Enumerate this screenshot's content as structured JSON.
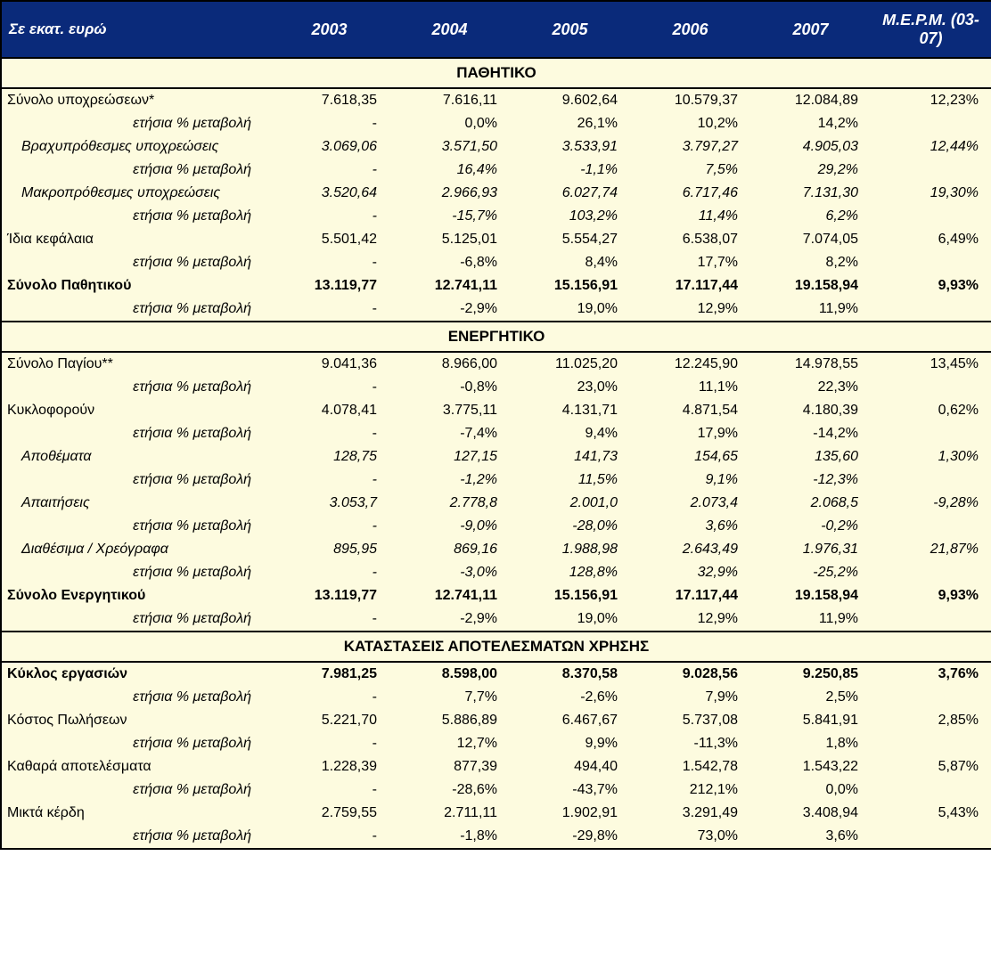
{
  "colors": {
    "header_bg": "#0a2a7a",
    "header_text": "#ffffff",
    "body_bg": "#fdfbdf",
    "border": "#000000"
  },
  "header": {
    "row_label": "Σε εκατ. ευρώ",
    "years": [
      "2003",
      "2004",
      "2005",
      "2006",
      "2007"
    ],
    "avg": "Μ.Ε.Ρ.Μ. (03-07)"
  },
  "labels": {
    "annual_change": "ετήσια % μεταβολή"
  },
  "sections": [
    {
      "title": "ΠΑΘΗΤΙΚΟ",
      "rows": [
        {
          "label": "Σύνολο υποχρεώσεων*",
          "style": "plain",
          "indent": 0,
          "vals": [
            "7.618,35",
            "7.616,11",
            "9.602,64",
            "10.579,37",
            "12.084,89",
            "12,23%"
          ],
          "change": [
            "-",
            "0,0%",
            "26,1%",
            "10,2%",
            "14,2%",
            ""
          ]
        },
        {
          "label": "Βραχυπρόθεσμες υποχρεώσεις",
          "style": "sub",
          "indent": 1,
          "vals": [
            "3.069,06",
            "3.571,50",
            "3.533,91",
            "3.797,27",
            "4.905,03",
            "12,44%"
          ],
          "change": [
            "-",
            "16,4%",
            "-1,1%",
            "7,5%",
            "29,2%",
            ""
          ]
        },
        {
          "label": "Μακροπρόθεσμες υποχρεώσεις",
          "style": "sub",
          "indent": 1,
          "vals": [
            "3.520,64",
            "2.966,93",
            "6.027,74",
            "6.717,46",
            "7.131,30",
            "19,30%"
          ],
          "change": [
            "-",
            "-15,7%",
            "103,2%",
            "11,4%",
            "6,2%",
            ""
          ]
        },
        {
          "label": "Ίδια κεφάλαια",
          "style": "plain",
          "indent": 0,
          "vals": [
            "5.501,42",
            "5.125,01",
            "5.554,27",
            "6.538,07",
            "7.074,05",
            "6,49%"
          ],
          "change": [
            "-",
            "-6,8%",
            "8,4%",
            "17,7%",
            "8,2%",
            ""
          ]
        },
        {
          "label": "Σύνολο Παθητικού",
          "style": "bold",
          "indent": 0,
          "vals": [
            "13.119,77",
            "12.741,11",
            "15.156,91",
            "17.117,44",
            "19.158,94",
            "9,93%"
          ],
          "change": [
            "-",
            "-2,9%",
            "19,0%",
            "12,9%",
            "11,9%",
            ""
          ]
        }
      ]
    },
    {
      "title": "ΕΝΕΡΓΗΤΙΚΟ",
      "rows": [
        {
          "label": "Σύνολο Παγίου**",
          "style": "plain",
          "indent": 0,
          "vals": [
            "9.041,36",
            "8.966,00",
            "11.025,20",
            "12.245,90",
            "14.978,55",
            "13,45%"
          ],
          "change": [
            "-",
            "-0,8%",
            "23,0%",
            "11,1%",
            "22,3%",
            ""
          ]
        },
        {
          "label": "Κυκλοφορούν",
          "style": "plain",
          "indent": 0,
          "vals": [
            "4.078,41",
            "3.775,11",
            "4.131,71",
            "4.871,54",
            "4.180,39",
            "0,62%"
          ],
          "change": [
            "-",
            "-7,4%",
            "9,4%",
            "17,9%",
            "-14,2%",
            ""
          ]
        },
        {
          "label": "Αποθέματα",
          "style": "sub",
          "indent": 1,
          "vals": [
            "128,75",
            "127,15",
            "141,73",
            "154,65",
            "135,60",
            "1,30%"
          ],
          "change": [
            "-",
            "-1,2%",
            "11,5%",
            "9,1%",
            "-12,3%",
            ""
          ]
        },
        {
          "label": "Απαιτήσεις",
          "style": "sub",
          "indent": 1,
          "vals": [
            "3.053,7",
            "2.778,8",
            "2.001,0",
            "2.073,4",
            "2.068,5",
            "-9,28%"
          ],
          "change": [
            "-",
            "-9,0%",
            "-28,0%",
            "3,6%",
            "-0,2%",
            ""
          ]
        },
        {
          "label": "Διαθέσιμα / Χρεόγραφα",
          "style": "sub",
          "indent": 1,
          "vals": [
            "895,95",
            "869,16",
            "1.988,98",
            "2.643,49",
            "1.976,31",
            "21,87%"
          ],
          "change": [
            "-",
            "-3,0%",
            "128,8%",
            "32,9%",
            "-25,2%",
            ""
          ]
        },
        {
          "label": "Σύνολο Ενεργητικού",
          "style": "bold",
          "indent": 0,
          "vals": [
            "13.119,77",
            "12.741,11",
            "15.156,91",
            "17.117,44",
            "19.158,94",
            "9,93%"
          ],
          "change": [
            "-",
            "-2,9%",
            "19,0%",
            "12,9%",
            "11,9%",
            ""
          ]
        }
      ]
    },
    {
      "title": "ΚΑΤΑΣΤΑΣΕΙΣ ΑΠΟΤΕΛΕΣΜΑΤΩΝ ΧΡΗΣΗΣ",
      "rows": [
        {
          "label": "Κύκλος εργασιών",
          "style": "bold",
          "indent": 0,
          "vals": [
            "7.981,25",
            "8.598,00",
            "8.370,58",
            "9.028,56",
            "9.250,85",
            "3,76%"
          ],
          "change": [
            "-",
            "7,7%",
            "-2,6%",
            "7,9%",
            "2,5%",
            ""
          ]
        },
        {
          "label": "Κόστος Πωλήσεων",
          "style": "plain",
          "indent": 0,
          "vals": [
            "5.221,70",
            "5.886,89",
            "6.467,67",
            "5.737,08",
            "5.841,91",
            "2,85%"
          ],
          "change": [
            "-",
            "12,7%",
            "9,9%",
            "-11,3%",
            "1,8%",
            ""
          ]
        },
        {
          "label": "Καθαρά αποτελέσματα",
          "style": "plain",
          "indent": 0,
          "vals": [
            "1.228,39",
            "877,39",
            "494,40",
            "1.542,78",
            "1.543,22",
            "5,87%"
          ],
          "change": [
            "-",
            "-28,6%",
            "-43,7%",
            "212,1%",
            "0,0%",
            ""
          ]
        },
        {
          "label": "Μικτά κέρδη",
          "style": "plain",
          "indent": 0,
          "vals": [
            "2.759,55",
            "2.711,11",
            "1.902,91",
            "3.291,49",
            "3.408,94",
            "5,43%"
          ],
          "change": [
            "-",
            "-1,8%",
            "-29,8%",
            "73,0%",
            "3,6%",
            ""
          ]
        }
      ]
    }
  ]
}
